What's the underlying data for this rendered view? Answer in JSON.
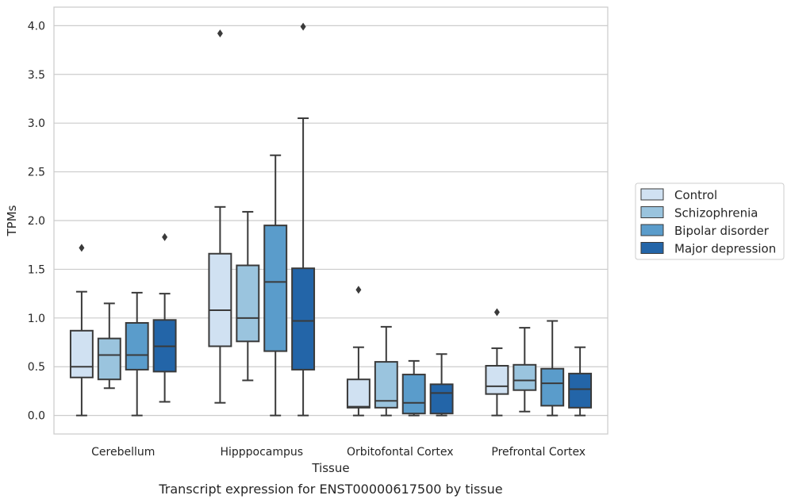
{
  "chart_data": {
    "type": "boxplot",
    "title": "",
    "caption": "Transcript expression for ENST00000617500 by tissue",
    "xlabel": "Tissue",
    "ylabel": "TPMs",
    "ylim": [
      -0.19,
      4.19
    ],
    "yticks": [
      "0.0",
      "0.5",
      "1.0",
      "1.5",
      "2.0",
      "2.5",
      "3.0",
      "3.5",
      "4.0"
    ],
    "categories": [
      "Cerebellum",
      "Hipppocampus",
      "Orbitofontal Cortex",
      "Prefrontal Cortex"
    ],
    "grid": "horizontal",
    "legend_position": "right",
    "series": [
      {
        "name": "Control",
        "color": "#d0e1f2",
        "boxes": [
          {
            "whislo": 0.0,
            "q1": 0.39,
            "med": 0.5,
            "q3": 0.87,
            "whishi": 1.27,
            "fliers": [
              1.72
            ]
          },
          {
            "whislo": 0.13,
            "q1": 0.71,
            "med": 1.08,
            "q3": 1.66,
            "whishi": 2.14,
            "fliers": [
              3.92
            ]
          },
          {
            "whislo": 0.0,
            "q1": 0.08,
            "med": 0.09,
            "q3": 0.37,
            "whishi": 0.7,
            "fliers": [
              1.29
            ]
          },
          {
            "whislo": 0.0,
            "q1": 0.22,
            "med": 0.3,
            "q3": 0.51,
            "whishi": 0.69,
            "fliers": [
              1.06
            ]
          }
        ]
      },
      {
        "name": "Schizophrenia",
        "color": "#9ac4de",
        "boxes": [
          {
            "whislo": 0.28,
            "q1": 0.37,
            "med": 0.62,
            "q3": 0.79,
            "whishi": 1.15,
            "fliers": []
          },
          {
            "whislo": 0.36,
            "q1": 0.76,
            "med": 1.0,
            "q3": 1.54,
            "whishi": 2.09,
            "fliers": []
          },
          {
            "whislo": 0.0,
            "q1": 0.08,
            "med": 0.15,
            "q3": 0.55,
            "whishi": 0.91,
            "fliers": []
          },
          {
            "whislo": 0.04,
            "q1": 0.26,
            "med": 0.36,
            "q3": 0.52,
            "whishi": 0.9,
            "fliers": []
          }
        ]
      },
      {
        "name": "Bipolar disorder",
        "color": "#5a9ccb",
        "boxes": [
          {
            "whislo": 0.0,
            "q1": 0.47,
            "med": 0.62,
            "q3": 0.95,
            "whishi": 1.26,
            "fliers": []
          },
          {
            "whislo": 0.0,
            "q1": 0.66,
            "med": 1.37,
            "q3": 1.95,
            "whishi": 2.67,
            "fliers": []
          },
          {
            "whislo": 0.0,
            "q1": 0.02,
            "med": 0.13,
            "q3": 0.42,
            "whishi": 0.56,
            "fliers": []
          },
          {
            "whislo": 0.0,
            "q1": 0.1,
            "med": 0.33,
            "q3": 0.48,
            "whishi": 0.97,
            "fliers": []
          }
        ]
      },
      {
        "name": "Major depression",
        "color": "#2365a8",
        "boxes": [
          {
            "whislo": 0.14,
            "q1": 0.45,
            "med": 0.71,
            "q3": 0.98,
            "whishi": 1.25,
            "fliers": [
              1.83
            ]
          },
          {
            "whislo": 0.0,
            "q1": 0.47,
            "med": 0.97,
            "q3": 1.51,
            "whishi": 3.05,
            "fliers": [
              3.99
            ]
          },
          {
            "whislo": 0.0,
            "q1": 0.02,
            "med": 0.23,
            "q3": 0.32,
            "whishi": 0.63,
            "fliers": []
          },
          {
            "whislo": 0.0,
            "q1": 0.08,
            "med": 0.27,
            "q3": 0.43,
            "whishi": 0.7,
            "fliers": []
          }
        ]
      }
    ]
  }
}
